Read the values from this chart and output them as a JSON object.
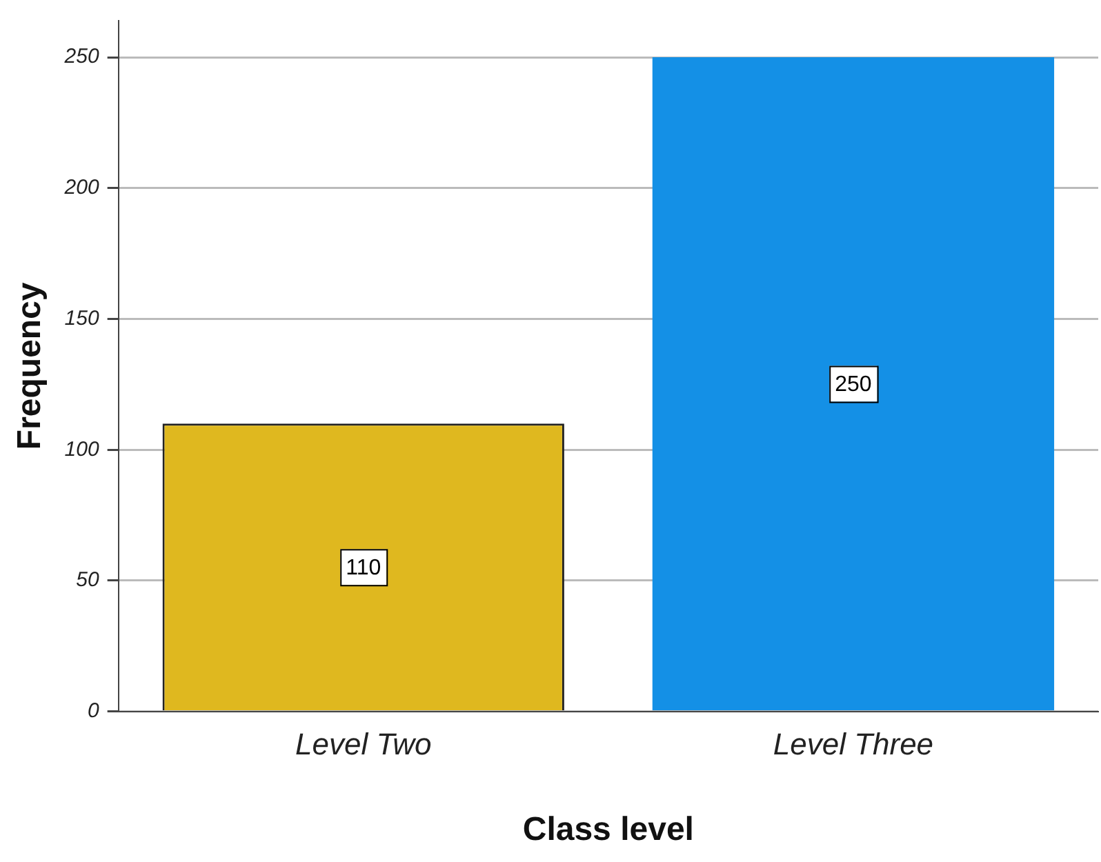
{
  "chart_data": {
    "type": "bar",
    "xlabel": "Class level",
    "ylabel": "Frequency",
    "categories": [
      "Level Two",
      "Level Three"
    ],
    "values": [
      110,
      250
    ],
    "colors": [
      "#dfb81f",
      "#1490e6"
    ],
    "ylim": [
      0,
      264
    ],
    "yticks": [
      0,
      50,
      100,
      150,
      200,
      250
    ],
    "grid": "y",
    "legend": false,
    "data_labels": true
  }
}
